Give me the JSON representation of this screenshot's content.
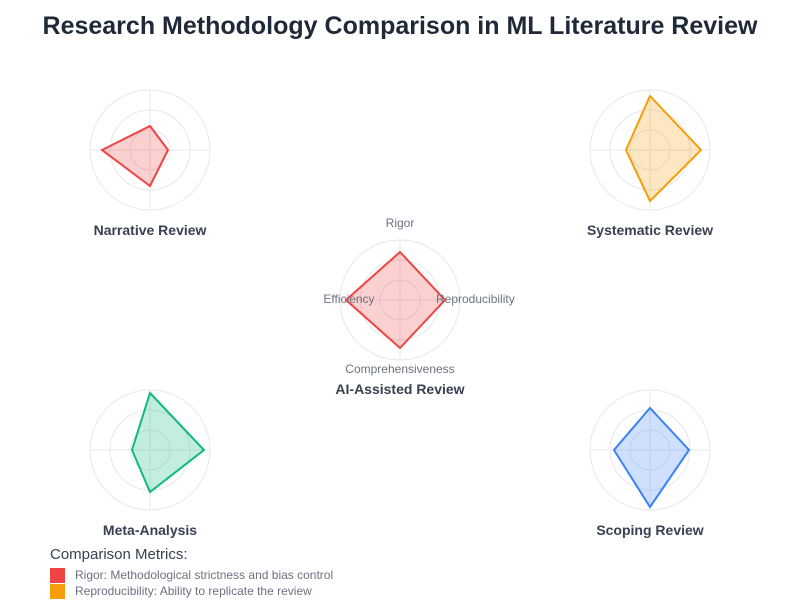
{
  "title": "Research Methodology Comparison in ML Literature Review",
  "chart_data": {
    "type": "radar",
    "title": "Research Methodology Comparison in ML Literature Review",
    "axes": [
      "Rigor",
      "Reproducibility",
      "Comprehensiveness",
      "Efficiency"
    ],
    "range": [
      0,
      1
    ],
    "grid_levels": 3,
    "charts": [
      {
        "name": "Narrative Review",
        "color": "#ef4444",
        "values": [
          0.4,
          0.3,
          0.6,
          0.8
        ]
      },
      {
        "name": "Systematic Review",
        "color": "#f59e0b",
        "values": [
          0.9,
          0.85,
          0.85,
          0.4
        ]
      },
      {
        "name": "AI-Assisted Review",
        "color": "#ef4444",
        "values": [
          0.8,
          0.75,
          0.8,
          0.9
        ],
        "show_axis_labels": true
      },
      {
        "name": "Meta-Analysis",
        "color": "#10b981",
        "values": [
          0.95,
          0.9,
          0.7,
          0.3
        ]
      },
      {
        "name": "Scoping Review",
        "color": "#3b82f6",
        "values": [
          0.7,
          0.65,
          0.95,
          0.6
        ]
      }
    ]
  },
  "legend": {
    "title": "Comparison Metrics:",
    "items": [
      {
        "label": "Rigor: Methodological strictness and bias control",
        "color": "#ef4444"
      },
      {
        "label": "Reproducibility: Ability to replicate the review",
        "color": "#f59e0b"
      }
    ]
  }
}
